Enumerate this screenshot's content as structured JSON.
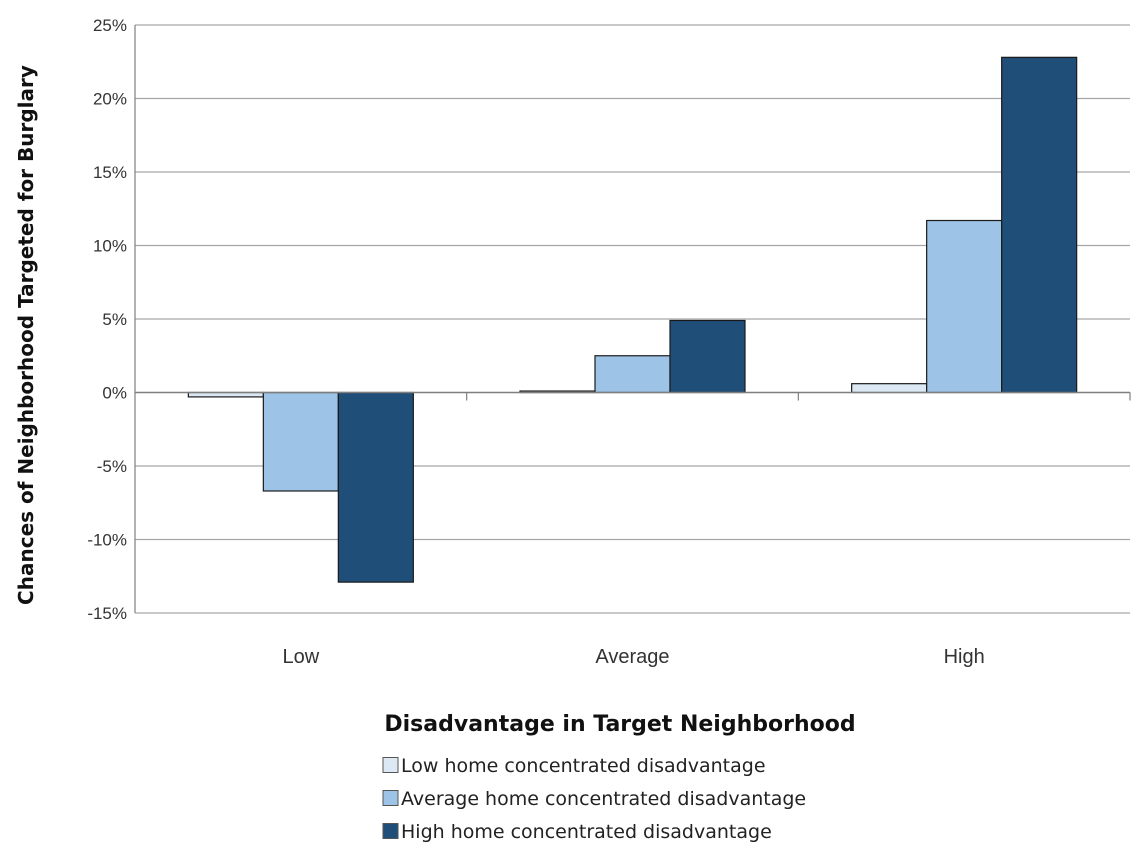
{
  "chart_data": {
    "type": "bar",
    "xlabel": "Disadvantage in Target Neighborhood",
    "ylabel": "Chances of Neighborhood Targeted for Burglary",
    "categories": [
      "Low",
      "Average",
      "High"
    ],
    "series": [
      {
        "name": "Low home concentrated disadvantage",
        "color": "#dce9f5",
        "values": [
          -0.3,
          0.1,
          0.6
        ]
      },
      {
        "name": "Average home concentrated disadvantage",
        "color": "#9dc3e6",
        "values": [
          -6.7,
          2.5,
          11.7
        ]
      },
      {
        "name": "High home concentrated disadvantage",
        "color": "#1f4e79",
        "values": [
          -12.9,
          4.9,
          22.8
        ]
      }
    ],
    "yticks": [
      25,
      20,
      15,
      10,
      5,
      0,
      -5,
      -10,
      -15
    ],
    "ytick_labels": [
      "25%",
      "20%",
      "15%",
      "10%",
      "5%",
      "0%",
      "-5%",
      "-10%",
      "-15%"
    ],
    "ylim": [
      -15,
      25
    ],
    "grid": true,
    "legend_position": "bottom"
  }
}
